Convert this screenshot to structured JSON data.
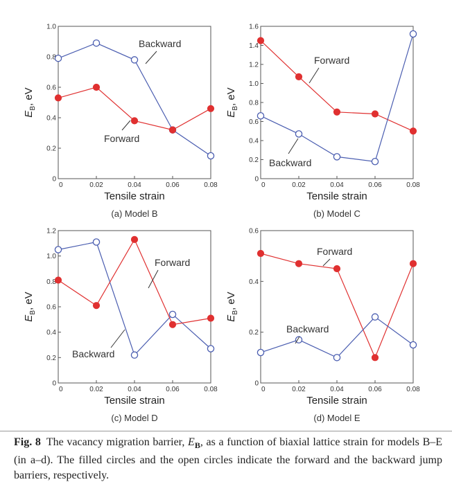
{
  "chart_data": [
    {
      "type": "line",
      "caption": "(a) Model B",
      "xlabel": "Tensile strain",
      "ylabel_main": "E",
      "ylabel_sub": "B",
      "ylabel_unit": ", eV",
      "x": [
        0,
        0.02,
        0.04,
        0.06,
        0.08
      ],
      "x_ticks": [
        "0",
        "0.02",
        "0.04",
        "0.06",
        "0.08"
      ],
      "ylim": [
        0,
        1.0
      ],
      "y_ticks": [
        "0",
        "0.2",
        "0.4",
        "0.6",
        "0.8",
        "1.0"
      ],
      "series": [
        {
          "name": "Backward",
          "marker": "open",
          "color": "#4a5db0",
          "values": [
            0.79,
            0.89,
            0.78,
            0.32,
            0.15
          ]
        },
        {
          "name": "Forward",
          "marker": "filled",
          "color": "#e03030",
          "values": [
            0.53,
            0.6,
            0.38,
            0.32,
            0.46
          ]
        }
      ]
    },
    {
      "type": "line",
      "caption": "(b) Model C",
      "xlabel": "Tensile strain",
      "ylabel_main": "E",
      "ylabel_sub": "B",
      "ylabel_unit": ", eV",
      "x": [
        0,
        0.02,
        0.04,
        0.06,
        0.08
      ],
      "x_ticks": [
        "0",
        "0.02",
        "0.04",
        "0.06",
        "0.08"
      ],
      "ylim": [
        0,
        1.6
      ],
      "y_ticks": [
        "0",
        "0.2",
        "0.4",
        "0.6",
        "0.8",
        "1.0",
        "1.2",
        "1.4",
        "1.6"
      ],
      "series": [
        {
          "name": "Forward",
          "marker": "filled",
          "color": "#e03030",
          "values": [
            1.45,
            1.07,
            0.7,
            0.68,
            0.5
          ]
        },
        {
          "name": "Backward",
          "marker": "open",
          "color": "#4a5db0",
          "values": [
            0.66,
            0.47,
            0.23,
            0.18,
            1.52
          ]
        }
      ]
    },
    {
      "type": "line",
      "caption": "(c) Model D",
      "xlabel": "Tensile strain",
      "ylabel_main": "E",
      "ylabel_sub": "B",
      "ylabel_unit": ", eV",
      "x": [
        0,
        0.02,
        0.04,
        0.06,
        0.08
      ],
      "x_ticks": [
        "0",
        "0.02",
        "0.04",
        "0.06",
        "0.08"
      ],
      "ylim": [
        0,
        1.2
      ],
      "y_ticks": [
        "0",
        "0.2",
        "0.4",
        "0.6",
        "0.8",
        "1.0",
        "1.2"
      ],
      "series": [
        {
          "name": "Backward",
          "marker": "open",
          "color": "#4a5db0",
          "values": [
            1.05,
            1.11,
            0.22,
            0.54,
            0.27
          ]
        },
        {
          "name": "Forward",
          "marker": "filled",
          "color": "#e03030",
          "values": [
            0.81,
            0.61,
            1.13,
            0.46,
            0.51
          ]
        }
      ]
    },
    {
      "type": "line",
      "caption": "(d) Model E",
      "xlabel": "Tensile strain",
      "ylabel_main": "E",
      "ylabel_sub": "B",
      "ylabel_unit": ", eV",
      "x": [
        0,
        0.02,
        0.04,
        0.06,
        0.08
      ],
      "x_ticks": [
        "0",
        "0.02",
        "0.04",
        "0.06",
        "0.08"
      ],
      "ylim": [
        0,
        0.6
      ],
      "y_ticks": [
        "0",
        "0.2",
        "0.4",
        "0.6"
      ],
      "series": [
        {
          "name": "Forward",
          "marker": "filled",
          "color": "#e03030",
          "values": [
            0.51,
            0.47,
            0.45,
            0.1,
            0.47
          ]
        },
        {
          "name": "Backward",
          "marker": "open",
          "color": "#4a5db0",
          "values": [
            0.12,
            0.17,
            0.1,
            0.26,
            0.15
          ]
        }
      ]
    }
  ],
  "caption": {
    "label": "Fig. 8",
    "text": "The vacancy migration barrier, E_B, as a function of biaxial lattice strain for models B–E (in a–d). The filled circles and the open circles indicate the forward and the backward jump barriers, respectively."
  }
}
